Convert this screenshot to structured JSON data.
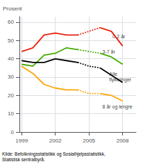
{
  "chart_data": {
    "type": "line",
    "ylabel": "Prosent",
    "caption": "Kilde: Befolkningsstatistikk og Sosialhjelpsstatistikk,\nStatistisk sentralbyrå.",
    "xlim": [
      1998.8,
      2009.2
    ],
    "xticks": [
      1999,
      2002,
      2005,
      2008
    ],
    "ylim": [
      0,
      63
    ],
    "yticks": [
      0,
      10,
      20,
      30,
      40,
      50,
      60
    ],
    "grid": true,
    "series": [
      {
        "color": "#e8200c",
        "line_style": "solid",
        "x": [
          1999,
          2000,
          2001,
          2002,
          2003,
          2004
        ],
        "values": [
          44,
          46,
          53,
          54,
          53,
          53
        ]
      },
      {
        "color": "#e8200c",
        "line_style": "dotted",
        "x": [
          2004,
          2005,
          2006
        ],
        "values": [
          53,
          55,
          57
        ]
      },
      {
        "color": "#e8200c",
        "line_style": "solid",
        "x": [
          2006,
          2007,
          2008
        ],
        "values": [
          57,
          55,
          47
        ]
      },
      {
        "color": "#44aa00",
        "line_style": "solid",
        "x": [
          1999,
          2000,
          2001,
          2002,
          2003,
          2004
        ],
        "values": [
          37,
          36,
          42,
          43,
          46,
          45
        ]
      },
      {
        "color": "#44aa00",
        "line_style": "dotted",
        "x": [
          2004,
          2005,
          2006
        ],
        "values": [
          45,
          44,
          43
        ]
      },
      {
        "color": "#44aa00",
        "line_style": "solid",
        "x": [
          2006,
          2007,
          2008
        ],
        "values": [
          43,
          41,
          37
        ]
      },
      {
        "color": "#000000",
        "line_style": "solid",
        "x": [
          1999,
          2000,
          2001,
          2002,
          2003,
          2004
        ],
        "values": [
          39,
          38,
          38,
          40,
          39,
          38
        ]
      },
      {
        "color": "#000000",
        "line_style": "dotted",
        "x": [
          2004,
          2005,
          2006
        ],
        "values": [
          38,
          36,
          35
        ]
      },
      {
        "color": "#000000",
        "line_style": "solid",
        "x": [
          2006,
          2007,
          2008
        ],
        "values": [
          35,
          31,
          27
        ]
      },
      {
        "color": "#ffa500",
        "line_style": "solid",
        "x": [
          1999,
          2000,
          2001,
          2002,
          2003,
          2004
        ],
        "values": [
          36,
          32,
          26,
          24,
          23,
          23
        ]
      },
      {
        "color": "#ffa500",
        "line_style": "dotted",
        "x": [
          2004,
          2005,
          2006
        ],
        "values": [
          23,
          21,
          21
        ]
      },
      {
        "color": "#ffa500",
        "line_style": "solid",
        "x": [
          2006,
          2007,
          2008
        ],
        "values": [
          21,
          20,
          17
        ]
      }
    ],
    "annotations": [
      {
        "text": "0-2 år",
        "x": 2007.1,
        "y": 52
      },
      {
        "text": "3-7 år",
        "x": 2006.2,
        "y": 44
      },
      {
        "text": "Alle\nflyktninger",
        "x": 2006.8,
        "y": 30
      },
      {
        "text": "8 år og lengre",
        "x": 2006.2,
        "y": 14
      }
    ]
  }
}
